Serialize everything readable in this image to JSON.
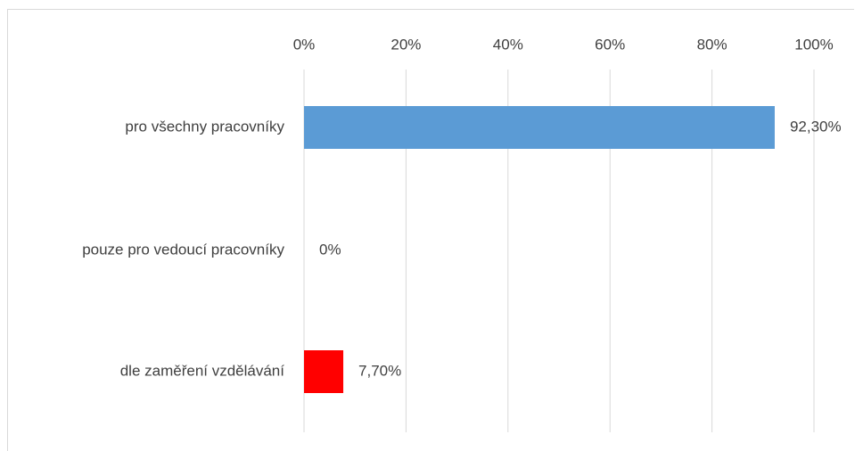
{
  "chart_data": {
    "type": "bar",
    "orientation": "horizontal",
    "categories": [
      "pro všechny pracovníky",
      "pouze pro vedoucí pracovníky",
      "dle zaměření vzdělávání"
    ],
    "values": [
      92.3,
      0,
      7.7
    ],
    "data_labels": [
      "92,30%",
      "0%",
      "7,70%"
    ],
    "bar_colors": [
      "#5b9bd5",
      "#5b9bd5",
      "#ff0000"
    ],
    "xlim": [
      0,
      100
    ],
    "x_ticks": [
      0,
      20,
      40,
      60,
      80,
      100
    ],
    "x_tick_labels": [
      "0%",
      "20%",
      "40%",
      "60%",
      "80%",
      "100%"
    ],
    "x_axis_position": "top",
    "grid": true,
    "gridline_color": "#d9d9d9",
    "title": "",
    "xlabel": "",
    "ylabel": ""
  }
}
